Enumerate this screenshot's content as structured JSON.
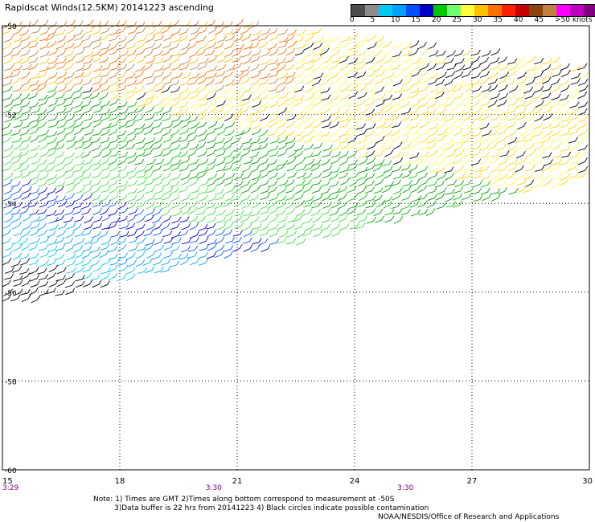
{
  "header": {
    "title": "Rapidscat Winds(12.5KM) 20141223 ascending"
  },
  "legend": {
    "ticks": [
      "0",
      "5",
      "10",
      "15",
      "20",
      "25",
      "30",
      "35",
      "40",
      "45",
      ">50 knots"
    ],
    "colors": [
      "#4d4d4d",
      "#8c8c8c",
      "#00c8f0",
      "#00a0ff",
      "#0050ff",
      "#0000c8",
      "#00c800",
      "#70ff70",
      "#ffff40",
      "#ffc000",
      "#ff7000",
      "#ff2000",
      "#c80000",
      "#8b4513",
      "#c08040",
      "#ff00ff",
      "#c000c0",
      "#800080"
    ]
  },
  "map": {
    "lat_labels": [
      "-50",
      "-52",
      "-54",
      "-56",
      "-58",
      "-60"
    ],
    "lon_labels": [
      "15",
      "18",
      "21",
      "24",
      "27",
      "30"
    ],
    "lat_range": [
      -60,
      -50
    ],
    "lon_range": [
      15,
      30
    ],
    "time_labels": [
      {
        "text": "3:29",
        "lon": 15
      },
      {
        "text": "3:30",
        "lon": 20.4
      },
      {
        "text": "3:30",
        "lon": 25.3
      }
    ],
    "time_color": "#800080",
    "grid": "dotted"
  },
  "notes": {
    "line1": "Note: 1) Times are GMT 2)Times along bottom correspond to measurement at -50S",
    "line2": "3)Data buffer is 22 hrs from 20141223 4) Black circles indicate possible contamination",
    "credit": "NOAA/NESDIS/Office of Research and Applications"
  }
}
